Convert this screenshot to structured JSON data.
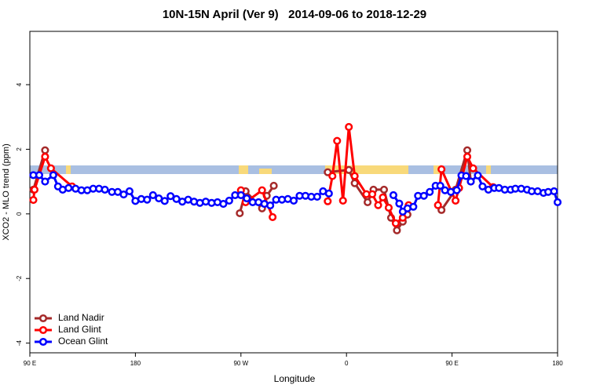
{
  "chart_data": {
    "type": "line",
    "title": "10N-15N April (Ver 9)   2014-09-06 to 2018-12-29",
    "xlabel": "Longitude",
    "ylabel": "XCO2 - MLO trend (ppm)",
    "xlim": [
      90,
      540
    ],
    "xticks": [
      {
        "value": 90,
        "label": "90 E"
      },
      {
        "value": 180,
        "label": "180"
      },
      {
        "value": 270,
        "label": "90 W"
      },
      {
        "value": 360,
        "label": "0"
      },
      {
        "value": 450,
        "label": "90 E"
      },
      {
        "value": 540,
        "label": "180"
      }
    ],
    "ylim": [
      -4.3,
      5.65
    ],
    "yticks": [
      -4,
      -2,
      0,
      2,
      4
    ],
    "legend": "bottom-left",
    "series": [
      {
        "name": "Land Nadir",
        "color": "#a52a2a",
        "x": [
          93,
          103,
          185,
          269,
          274,
          288,
          292,
          298,
          320,
          344,
          362,
          367,
          378,
          383,
          392,
          398,
          403,
          408,
          412,
          430,
          441,
          453,
          463,
          466
        ],
        "values": [
          0.75,
          1.97,
          null,
          0.02,
          0.7,
          0.17,
          0.56,
          0.87,
          null,
          1.29,
          1.36,
          0.95,
          0.36,
          0.75,
          0.75,
          -0.12,
          -0.51,
          -0.24,
          -0.02,
          null,
          0.12,
          0.75,
          1.97,
          1.0
        ]
      },
      {
        "name": "Land Glint",
        "color": "#ff0000",
        "x": [
          93,
          94,
          103,
          108,
          126,
          200,
          270,
          274,
          288,
          297,
          320,
          344,
          348,
          352,
          357,
          362,
          367,
          377,
          382,
          387,
          391,
          396,
          402,
          408,
          413,
          425,
          438,
          441,
          453,
          456,
          463,
          468,
          485
        ],
        "values": [
          0.43,
          0.75,
          1.77,
          1.41,
          0.85,
          null,
          0.73,
          0.36,
          0.73,
          -0.1,
          null,
          0.39,
          1.17,
          2.26,
          0.41,
          2.69,
          1.17,
          0.61,
          0.61,
          0.27,
          0.51,
          0.19,
          -0.29,
          -0.12,
          0.27,
          null,
          0.27,
          1.38,
          0.41,
          0.8,
          1.77,
          1.41,
          0.83
        ]
      },
      {
        "name": "Ocean Glint",
        "color": "#0000ff",
        "x": [
          93,
          98,
          103,
          110,
          114,
          118,
          123,
          129,
          134,
          139,
          144,
          149,
          154,
          160,
          165,
          170,
          175,
          180,
          185,
          190,
          195,
          200,
          205,
          210,
          215,
          220,
          225,
          230,
          235,
          240,
          245,
          250,
          255,
          260,
          265,
          270,
          275,
          280,
          285,
          290,
          295,
          300,
          305,
          310,
          315,
          320,
          325,
          330,
          335,
          340,
          345,
          370,
          400,
          405,
          408,
          412,
          417,
          421,
          426,
          431,
          436,
          440,
          444,
          449,
          454,
          458,
          462,
          466,
          472,
          476,
          481,
          486,
          490,
          495,
          500,
          504,
          509,
          514,
          518,
          523,
          528,
          532,
          537,
          540
        ],
        "values": [
          1.2,
          1.2,
          1.0,
          1.2,
          0.85,
          0.75,
          0.8,
          0.78,
          0.73,
          0.73,
          0.78,
          0.78,
          0.75,
          0.68,
          0.68,
          0.6,
          0.7,
          0.4,
          0.46,
          0.44,
          0.58,
          0.48,
          0.4,
          0.55,
          0.46,
          0.38,
          0.44,
          0.38,
          0.34,
          0.38,
          0.34,
          0.36,
          0.31,
          0.41,
          0.58,
          0.58,
          0.48,
          0.36,
          0.36,
          0.31,
          0.26,
          0.44,
          0.44,
          0.46,
          0.41,
          0.56,
          0.56,
          0.53,
          0.53,
          0.7,
          0.63,
          null,
          0.58,
          0.32,
          0.07,
          0.17,
          0.22,
          0.56,
          0.56,
          0.68,
          0.87,
          0.87,
          0.73,
          0.68,
          0.73,
          1.19,
          1.17,
          1.0,
          1.19,
          0.85,
          0.75,
          0.8,
          0.8,
          0.75,
          0.75,
          0.78,
          0.78,
          0.75,
          0.7,
          0.7,
          0.65,
          0.68,
          0.7,
          0.36
        ]
      }
    ]
  }
}
